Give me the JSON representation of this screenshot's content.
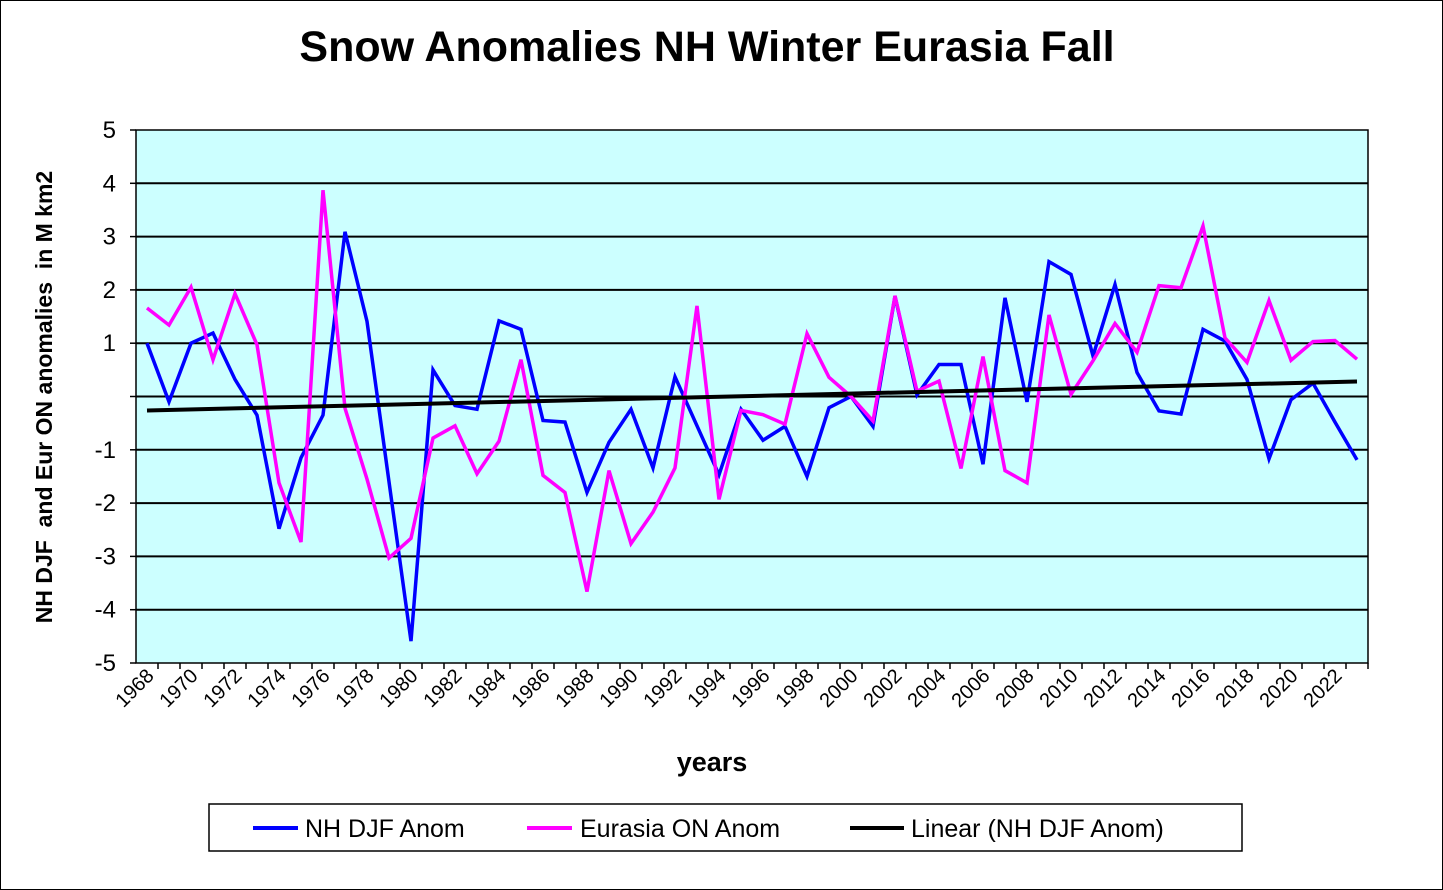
{
  "chart_data": {
    "type": "line",
    "title": "Snow Anomalies NH Winter Eurasia Fall",
    "xlabel": "years",
    "ylabel": "NH DJF  and Eur ON anomalies  in M km2",
    "ylim": [
      -5,
      5
    ],
    "yticks": [
      "-5",
      "-4",
      "-3",
      "-2",
      "-1",
      "",
      "1",
      "2",
      "3",
      "4",
      "5"
    ],
    "grid": true,
    "legend_position": "bottom",
    "x": [
      1968,
      1969,
      1970,
      1971,
      1972,
      1973,
      1974,
      1975,
      1976,
      1977,
      1978,
      1979,
      1980,
      1981,
      1982,
      1983,
      1984,
      1985,
      1986,
      1987,
      1988,
      1989,
      1990,
      1991,
      1992,
      1993,
      1994,
      1995,
      1996,
      1997,
      1998,
      1999,
      2000,
      2001,
      2002,
      2003,
      2004,
      2005,
      2006,
      2007,
      2008,
      2009,
      2010,
      2011,
      2012,
      2013,
      2014,
      2015,
      2016,
      2017,
      2018,
      2019,
      2020,
      2021,
      2022,
      2023
    ],
    "xtick_labels": [
      "1968",
      "1970",
      "1972",
      "1974",
      "1976",
      "1978",
      "1980",
      "1982",
      "1984",
      "1986",
      "1988",
      "1990",
      "1992",
      "1994",
      "1996",
      "1998",
      "2000",
      "2002",
      "2004",
      "2006",
      "2008",
      "2010",
      "2012",
      "2014",
      "2016",
      "2018",
      "2020",
      "2022"
    ],
    "series": [
      {
        "name": "NH DJF Anom",
        "color": "#0000ff",
        "values": [
          1.0,
          -0.1,
          1.0,
          1.19,
          0.32,
          -0.35,
          -2.48,
          -1.15,
          -0.35,
          3.09,
          1.41,
          -1.6,
          -4.59,
          0.5,
          -0.17,
          -0.24,
          1.42,
          1.26,
          -0.45,
          -0.48,
          -1.8,
          -0.86,
          -0.24,
          -1.34,
          0.37,
          -0.55,
          -1.47,
          -0.24,
          -0.82,
          -0.56,
          -1.5,
          -0.21,
          0.0,
          -0.56,
          1.88,
          0.03,
          0.6,
          0.6,
          -1.27,
          1.85,
          -0.1,
          2.53,
          2.29,
          0.76,
          2.1,
          0.45,
          -0.27,
          -0.33,
          1.26,
          1.04,
          0.32,
          -1.17,
          -0.06,
          0.25,
          -0.48,
          -1.19
        ]
      },
      {
        "name": "Eurasia ON Anom",
        "color": "#ff00ff",
        "values": [
          1.66,
          1.34,
          2.05,
          0.69,
          1.93,
          0.97,
          -1.62,
          -2.73,
          3.87,
          -0.22,
          -1.55,
          -3.03,
          -2.66,
          -0.78,
          -0.55,
          -1.45,
          -0.84,
          0.69,
          -1.48,
          -1.8,
          -3.66,
          -1.39,
          -2.76,
          -2.17,
          -1.34,
          1.7,
          -1.93,
          -0.26,
          -0.34,
          -0.52,
          1.18,
          0.36,
          0.0,
          -0.46,
          1.89,
          0.1,
          0.29,
          -1.35,
          0.75,
          -1.39,
          -1.62,
          1.53,
          0.04,
          0.67,
          1.37,
          0.83,
          2.08,
          2.04,
          3.2,
          1.1,
          0.64,
          1.8,
          0.68,
          1.03,
          1.05,
          0.7
        ]
      },
      {
        "name": "Linear (NH DJF Anom)",
        "color": "#000000",
        "trend_of": "NH DJF Anom"
      }
    ]
  }
}
